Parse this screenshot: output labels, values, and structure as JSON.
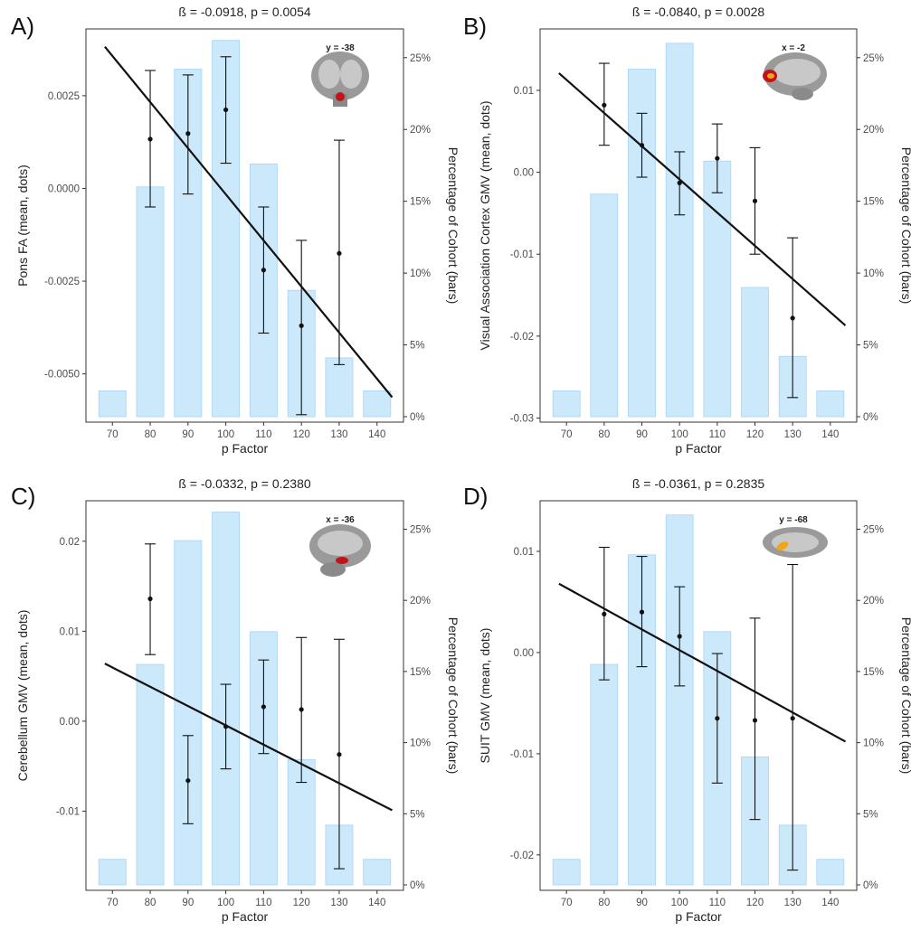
{
  "chart_data": [
    {
      "panel": "A)",
      "type": "bar",
      "title": "ß = -0.0918, p = 0.0054",
      "xlabel": "p Factor",
      "ylabel": "Pons FA (mean, dots)",
      "y2label": "Percentage of Cohort (bars)",
      "brain_label": "y = -38",
      "categories": [
        "70",
        "80",
        "90",
        "100",
        "110",
        "120",
        "130",
        "140"
      ],
      "bars_percent": [
        1.8,
        16.0,
        24.2,
        26.2,
        17.6,
        8.8,
        4.1,
        1.8
      ],
      "means": [
        null,
        0.00133,
        0.00148,
        0.00212,
        -0.0022,
        -0.0037,
        -0.00175,
        null
      ],
      "err_low": [
        null,
        -0.0005,
        -0.00015,
        0.00068,
        -0.0039,
        -0.0061,
        -0.00475,
        null
      ],
      "err_high": [
        null,
        0.00318,
        0.00306,
        0.00355,
        -0.0005,
        -0.0014,
        0.0013,
        null
      ],
      "fit_line": {
        "x": [
          68,
          144
        ],
        "y": [
          0.00382,
          -0.00563
        ]
      },
      "ylim": [
        -0.0063,
        0.0043
      ],
      "y2lim": [
        0,
        27
      ],
      "yticks": [
        -0.005,
        -0.0025,
        0.0,
        0.0025
      ],
      "ytick_labels": [
        "-0.0050",
        "-0.0025",
        "0.0000",
        "0.0025"
      ],
      "y2ticks": [
        0,
        5,
        10,
        15,
        20,
        25
      ],
      "y2tick_labels": [
        "0%",
        "5%",
        "10%",
        "15%",
        "20%",
        "25%"
      ],
      "grid": false
    },
    {
      "panel": "B)",
      "type": "bar",
      "title": "ß = -0.0840, p = 0.0028",
      "xlabel": "p Factor",
      "ylabel": "Visual Association Cortex GMV (mean, dots)",
      "y2label": "Percentage of Cohort (bars)",
      "brain_label": "x = -2",
      "categories": [
        "70",
        "80",
        "90",
        "100",
        "110",
        "120",
        "130",
        "140"
      ],
      "bars_percent": [
        1.8,
        15.5,
        24.2,
        26.0,
        17.8,
        9.0,
        4.2,
        1.8
      ],
      "means": [
        null,
        0.0082,
        0.0033,
        -0.0013,
        0.0017,
        -0.0035,
        -0.0178,
        null
      ],
      "err_low": [
        null,
        0.0033,
        -0.0006,
        -0.0052,
        -0.0025,
        -0.01,
        -0.0275,
        null
      ],
      "err_high": [
        null,
        0.0133,
        0.0072,
        0.0025,
        0.0059,
        0.003,
        -0.008,
        null
      ],
      "fit_line": {
        "x": [
          68,
          144
        ],
        "y": [
          0.0121,
          -0.0187
        ]
      },
      "ylim": [
        -0.0305,
        0.0175
      ],
      "y2lim": [
        0,
        27
      ],
      "yticks": [
        -0.03,
        -0.02,
        -0.01,
        0.0,
        0.01
      ],
      "ytick_labels": [
        "-0.03",
        "-0.02",
        "-0.01",
        "0.00",
        "0.01"
      ],
      "y2ticks": [
        0,
        5,
        10,
        15,
        20,
        25
      ],
      "y2tick_labels": [
        "0%",
        "5%",
        "10%",
        "15%",
        "20%",
        "25%"
      ],
      "grid": false
    },
    {
      "panel": "C)",
      "type": "bar",
      "title": "ß = -0.0332, p = 0.2380",
      "xlabel": "p Factor",
      "ylabel": "Cerebellum GMV (mean, dots)",
      "y2label": "Percentage of Cohort (bars)",
      "brain_label": "x = -36",
      "categories": [
        "70",
        "80",
        "90",
        "100",
        "110",
        "120",
        "130",
        "140"
      ],
      "bars_percent": [
        1.8,
        15.5,
        24.2,
        26.2,
        17.8,
        8.8,
        4.2,
        1.8
      ],
      "means": [
        null,
        0.0136,
        -0.0066,
        -0.0006,
        0.0016,
        0.0013,
        -0.0037,
        null
      ],
      "err_low": [
        null,
        0.0074,
        -0.0114,
        -0.0053,
        -0.0036,
        -0.0068,
        -0.0164,
        null
      ],
      "err_high": [
        null,
        0.0197,
        -0.0016,
        0.0041,
        0.0068,
        0.0093,
        0.0091,
        null
      ],
      "fit_line": {
        "x": [
          68,
          144
        ],
        "y": [
          0.0064,
          -0.0099
        ]
      },
      "ylim": [
        -0.0188,
        0.0245
      ],
      "y2lim": [
        0,
        27
      ],
      "yticks": [
        -0.01,
        0.0,
        0.01,
        0.02
      ],
      "ytick_labels": [
        "-0.01",
        "0.00",
        "0.01",
        "0.02"
      ],
      "y2ticks": [
        0,
        5,
        10,
        15,
        20,
        25
      ],
      "y2tick_labels": [
        "0%",
        "5%",
        "10%",
        "15%",
        "20%",
        "25%"
      ],
      "grid": false
    },
    {
      "panel": "D)",
      "type": "bar",
      "title": "ß = -0.0361, p = 0.2835",
      "xlabel": "p Factor",
      "ylabel": "SUIT GMV (mean, dots)",
      "y2label": "Percentage of Cohort (bars)",
      "brain_label": "y = -68",
      "categories": [
        "70",
        "80",
        "90",
        "100",
        "110",
        "120",
        "130",
        "140"
      ],
      "bars_percent": [
        1.8,
        15.5,
        23.2,
        26.0,
        17.8,
        9.0,
        4.2,
        1.8
      ],
      "means": [
        null,
        0.0038,
        0.004,
        0.0016,
        -0.0065,
        -0.0067,
        -0.0065,
        null
      ],
      "err_low": [
        null,
        -0.0027,
        -0.0014,
        -0.0033,
        -0.0129,
        -0.0165,
        -0.0215,
        null
      ],
      "err_high": [
        null,
        0.0104,
        0.0095,
        0.0065,
        -0.0001,
        0.0034,
        0.0087,
        null
      ],
      "fit_line": {
        "x": [
          68,
          144
        ],
        "y": [
          0.0068,
          -0.0088
        ]
      },
      "ylim": [
        -0.0235,
        0.015
      ],
      "y2lim": [
        0,
        27
      ],
      "yticks": [
        -0.02,
        -0.01,
        0.0,
        0.01
      ],
      "ytick_labels": [
        "-0.02",
        "-0.01",
        "0.00",
        "0.01"
      ],
      "y2ticks": [
        0,
        5,
        10,
        15,
        20,
        25
      ],
      "y2tick_labels": [
        "0%",
        "5%",
        "10%",
        "15%",
        "20%",
        "25%"
      ],
      "grid": false
    }
  ],
  "colors": {
    "bar_fill": "#cce8fb",
    "bar_stroke": "#a8d4f4",
    "line": "#111111",
    "points": "#111111",
    "brain_gray": "#9a9a9a",
    "brain_highlight": "#c0141b",
    "brain_highlight_alt": "#f2a516"
  }
}
